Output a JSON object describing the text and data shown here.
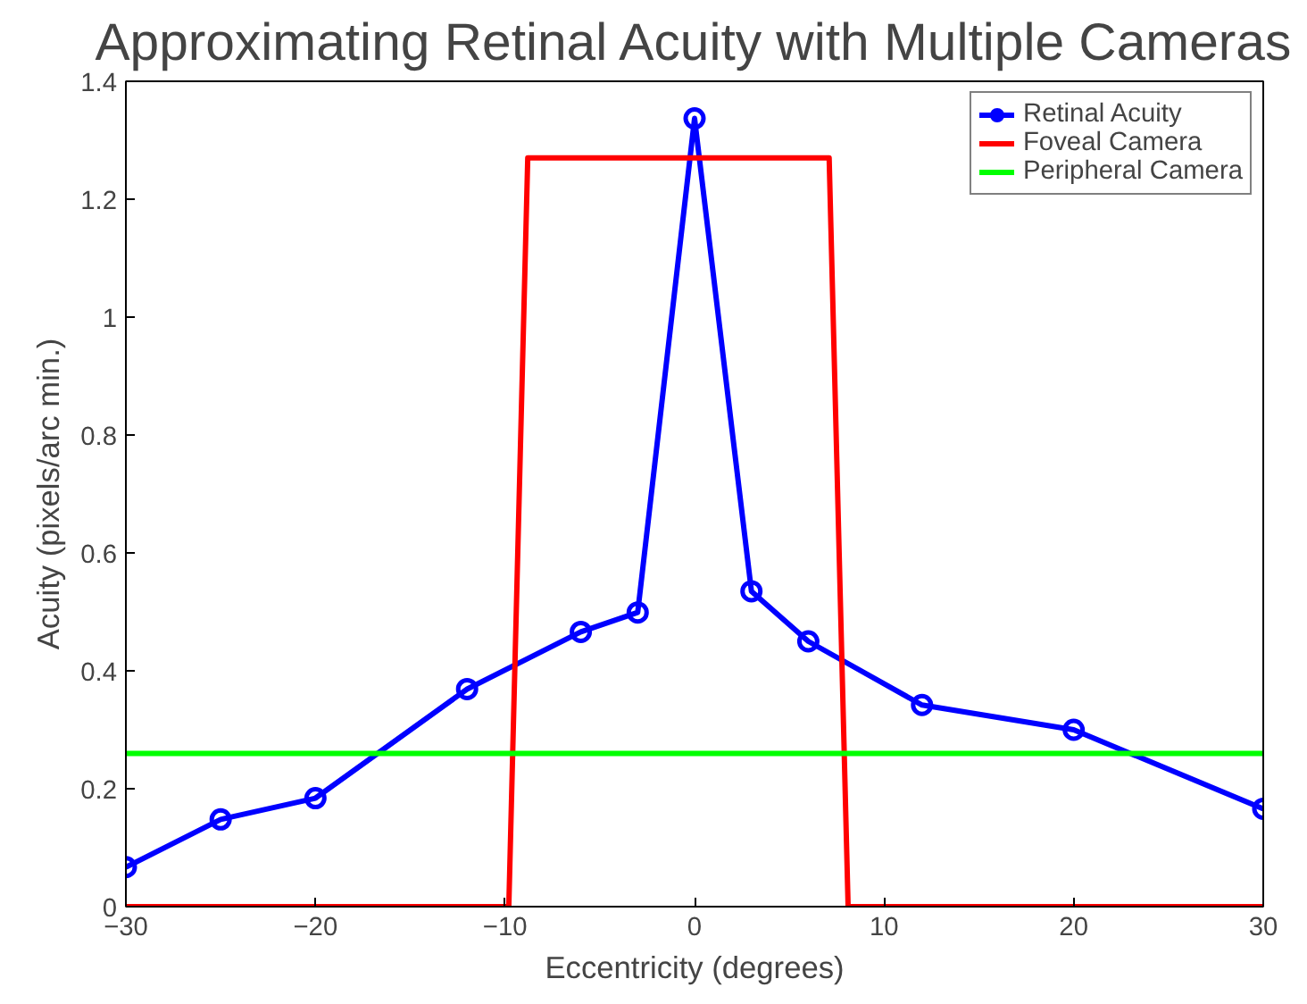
{
  "chart_data": {
    "type": "line",
    "title": "Approximating Retinal Acuity with Multiple Cameras",
    "xlabel": "Eccentricity (degrees)",
    "ylabel": "Acuity (pixels/arc min.)",
    "series": [
      {
        "name": "Retinal Acuity",
        "color": "#0000ff",
        "marker": "circle",
        "x": [
          -30,
          -25,
          -20,
          -12,
          -6,
          -3,
          0,
          3,
          6,
          12,
          20,
          30
        ],
        "values": [
          0.067,
          0.148,
          0.184,
          0.369,
          0.466,
          0.499,
          1.337,
          0.535,
          0.45,
          0.342,
          0.3,
          0.166
        ]
      },
      {
        "name": "Foveal Camera",
        "color": "#ff0000",
        "marker": "none",
        "x": [
          -30,
          -9.8,
          -8.8,
          7.1,
          8.1,
          30
        ],
        "values": [
          0,
          0,
          1.27,
          1.27,
          0,
          0
        ]
      },
      {
        "name": "Peripheral Camera",
        "color": "#00ff00",
        "marker": "none",
        "x": [
          -30,
          30
        ],
        "values": [
          0.26,
          0.26
        ]
      }
    ],
    "xlim": [
      -30,
      30
    ],
    "ylim": [
      0,
      1.4
    ],
    "xticks": [
      {
        "value": -30,
        "label": "−30"
      },
      {
        "value": -20,
        "label": "−20"
      },
      {
        "value": -10,
        "label": "−10"
      },
      0,
      10,
      20,
      30
    ],
    "yticks": [
      0,
      0.2,
      0.4,
      0.6,
      0.8,
      1,
      1.2,
      1.4
    ],
    "grid": false,
    "legend": "top right",
    "line_style": "solid"
  }
}
